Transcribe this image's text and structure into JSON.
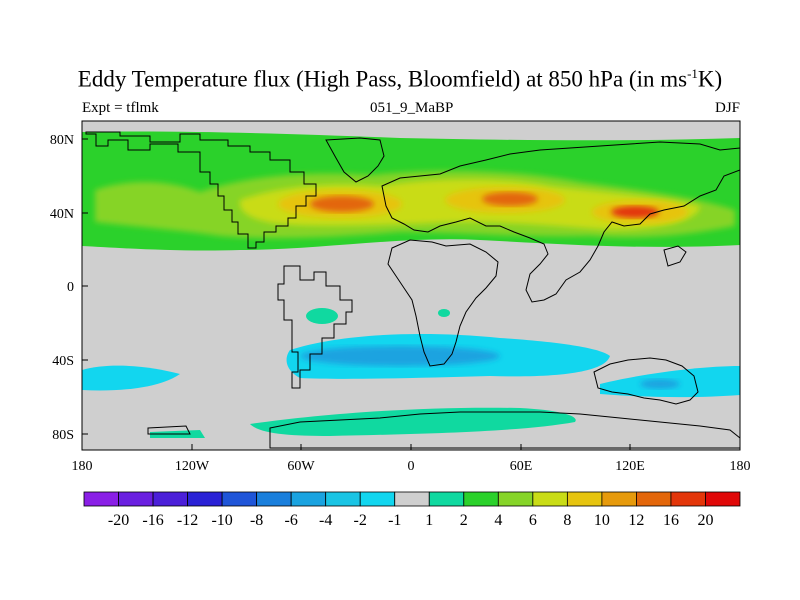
{
  "title": {
    "main": "Eddy Temperature flux (High Pass, Bloomfield) at 850 hPa (in ms",
    "superscript": "-1",
    "suffix": "K)"
  },
  "subtitle": {
    "left": "Expt = tflmk",
    "center": "051_9_MaBP",
    "right": "DJF"
  },
  "axes": {
    "lat_ticks": [
      "80N",
      "40N",
      "0",
      "40S",
      "80S"
    ],
    "lon_ticks": [
      "180",
      "120W",
      "60W",
      "0",
      "60E",
      "120E",
      "180"
    ]
  },
  "colorbar": {
    "labels": [
      "-20",
      "-16",
      "-12",
      "-10",
      "-8",
      "-6",
      "-4",
      "-2",
      "-1",
      "1",
      "2",
      "4",
      "6",
      "8",
      "10",
      "12",
      "16",
      "20"
    ],
    "colors": [
      "#8a1fe6",
      "#6a1fe0",
      "#4b1fd9",
      "#2a22d6",
      "#1f55d8",
      "#1a7fdc",
      "#1aa3e0",
      "#1ac4e4",
      "#12d6ef",
      "#cfcfcf",
      "#10d9a0",
      "#2bd12b",
      "#86d428",
      "#c9dc16",
      "#e6c40f",
      "#e69a0c",
      "#e3660a",
      "#e3360a",
      "#e00808"
    ]
  },
  "colors": {
    "background_land": "#cfcfcf",
    "green": "#2bd12b",
    "lightgreen": "#86d428",
    "yellow": "#c9dc16",
    "orange": "#e69a0c",
    "red": "#e3360a",
    "cyan": "#12d6ef",
    "blue": "#1aa3e0"
  }
}
